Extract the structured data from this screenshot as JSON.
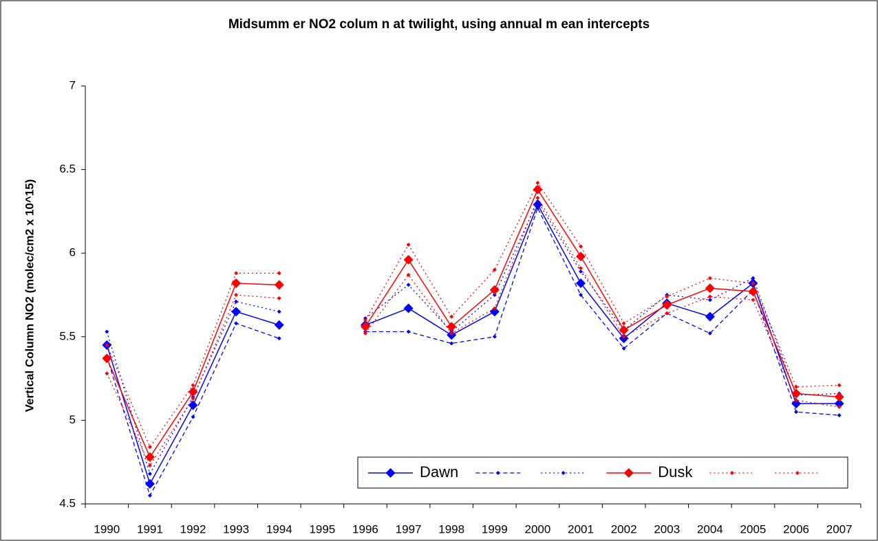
{
  "chart_data": {
    "type": "line",
    "title": "Midsumm er NO2 colum n at twilight, using annual m ean intercepts",
    "y_label": "Vertical Column NO2 (molec/cm2 x 10^15)",
    "categories": [
      "1990",
      "1991",
      "1992",
      "1993",
      "1994",
      "1995",
      "1996",
      "1997",
      "1998",
      "1999",
      "2000",
      "2001",
      "2002",
      "2003",
      "2004",
      "2005",
      "2006",
      "2007"
    ],
    "ylim": [
      4.5,
      7
    ],
    "yticks": [
      4.5,
      5,
      5.5,
      6,
      6.5,
      7
    ],
    "grid": false,
    "legend": "bottom-right",
    "series": [
      {
        "name": "Dawn",
        "color": "#0000ff",
        "line_style": "solid",
        "values": [
          5.45,
          4.62,
          5.09,
          5.65,
          5.57,
          null,
          5.57,
          5.67,
          5.51,
          5.65,
          6.29,
          5.82,
          5.49,
          5.7,
          5.62,
          5.82,
          5.1,
          5.1
        ]
      },
      {
        "color": "#0000ff",
        "line_style": "dashed",
        "values": [
          5.38,
          4.55,
          5.02,
          5.58,
          5.49,
          null,
          5.53,
          5.53,
          5.46,
          5.5,
          6.27,
          5.75,
          5.43,
          5.64,
          5.52,
          5.78,
          5.05,
          5.03
        ]
      },
      {
        "color": "#0000ff",
        "line_style": "dotted",
        "values": [
          5.53,
          4.68,
          5.14,
          5.71,
          5.65,
          null,
          5.61,
          5.81,
          5.53,
          5.75,
          6.31,
          5.89,
          5.54,
          5.75,
          5.72,
          5.85,
          5.15,
          5.16
        ]
      },
      {
        "name": "Dusk",
        "color": "#ff0000",
        "line_style": "solid",
        "values": [
          5.37,
          4.78,
          5.17,
          5.82,
          5.81,
          null,
          5.56,
          5.96,
          5.56,
          5.78,
          6.38,
          5.98,
          5.54,
          5.69,
          5.79,
          5.77,
          5.16,
          5.14
        ]
      },
      {
        "color": "#ff0000",
        "line_style": "dotted",
        "values": [
          5.45,
          4.84,
          5.21,
          5.88,
          5.88,
          null,
          5.6,
          6.05,
          5.62,
          5.9,
          6.42,
          6.04,
          5.58,
          5.74,
          5.85,
          5.82,
          5.2,
          5.21
        ]
      },
      {
        "color": "#ff0000",
        "line_style": "dotted",
        "values": [
          5.28,
          4.73,
          5.13,
          5.75,
          5.73,
          null,
          5.52,
          5.87,
          5.52,
          5.67,
          6.33,
          5.91,
          5.5,
          5.64,
          5.74,
          5.72,
          5.12,
          5.08
        ]
      }
    ]
  }
}
